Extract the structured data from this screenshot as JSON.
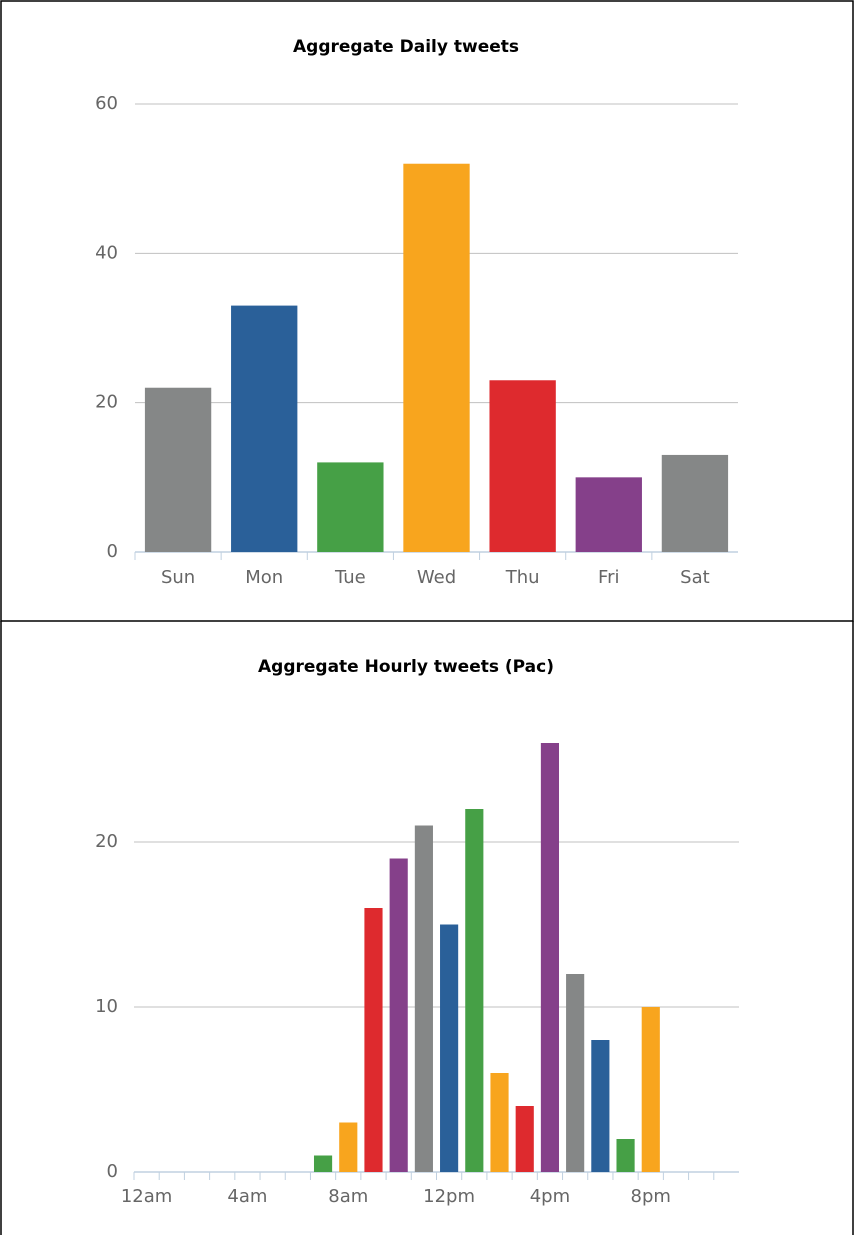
{
  "chart_data": [
    {
      "type": "bar",
      "title": "Aggregate Daily tweets",
      "categories": [
        "Sun",
        "Mon",
        "Tue",
        "Wed",
        "Thu",
        "Fri",
        "Sat"
      ],
      "values": [
        22,
        33,
        12,
        52,
        23,
        10,
        13
      ],
      "colors": [
        "#858787",
        "#2a6099",
        "#46a046",
        "#f8a51e",
        "#de2a2e",
        "#85408a",
        "#858787"
      ],
      "ylim": [
        0,
        60
      ],
      "yticks": [
        0,
        20,
        40,
        60
      ],
      "grid": true
    },
    {
      "type": "bar",
      "title": "Aggregate Hourly tweets (Pac)",
      "categories": [
        "12am",
        null,
        null,
        null,
        "4am",
        null,
        null,
        null,
        "8am",
        null,
        null,
        null,
        "12pm",
        null,
        null,
        null,
        "4pm",
        null,
        null,
        null,
        "8pm",
        null,
        null,
        null
      ],
      "values": [
        0,
        0,
        0,
        0,
        0,
        0,
        0,
        1,
        3,
        16,
        19,
        21,
        15,
        22,
        6,
        4,
        26,
        12,
        8,
        2,
        10,
        0,
        0,
        0
      ],
      "colors": [
        "#2a6099",
        "#46a046",
        "#f8a51e",
        "#de2a2e",
        "#85408a",
        "#858787",
        "#2a6099",
        "#46a046",
        "#f8a51e",
        "#de2a2e",
        "#85408a",
        "#858787",
        "#2a6099",
        "#46a046",
        "#f8a51e",
        "#de2a2e",
        "#85408a",
        "#858787",
        "#2a6099",
        "#46a046",
        "#f8a51e",
        "#de2a2e",
        "#85408a",
        "#858787"
      ],
      "ylim": [
        0,
        30
      ],
      "yticks": [
        0,
        10,
        20
      ],
      "grid": true
    }
  ]
}
